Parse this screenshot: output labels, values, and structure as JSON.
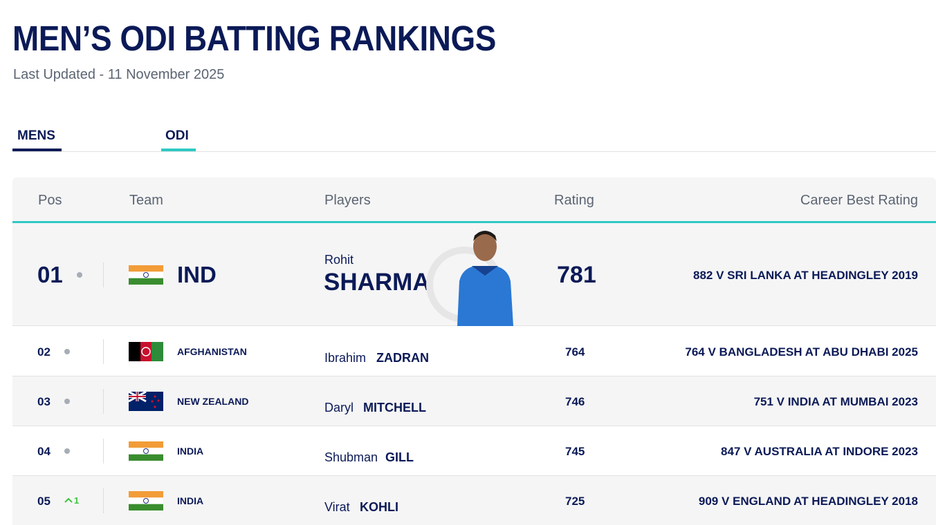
{
  "header": {
    "title": "MEN’S ODI BATTING RANKINGS",
    "subtitle": "Last Updated - 11 November 2025"
  },
  "tabs": [
    "MENS",
    "ODI"
  ],
  "table": {
    "columns": [
      "Pos",
      "Team",
      "Players",
      "Rating",
      "Career Best Rating"
    ],
    "rows": [
      {
        "pos": "01",
        "team": "IND",
        "first_name": "Rohit",
        "last_name": "SHARMA",
        "rating": 781,
        "career_best": "882 V SRI LANKA AT HEADINGLEY 2019"
      },
      {
        "pos": "02",
        "team": "AFGHANISTAN",
        "first_name": "Ibrahim",
        "last_name": "ZADRAN",
        "rating": 764,
        "career_best": "764 V BANGLADESH AT ABU DHABI 2025"
      },
      {
        "pos": "03",
        "team": "NEW ZEALAND",
        "first_name": "Daryl",
        "last_name": "MITCHELL",
        "rating": 746,
        "career_best": "751 V INDIA AT MUMBAI 2023"
      },
      {
        "pos": "04",
        "team": "INDIA",
        "first_name": "Shubman",
        "last_name": "GILL",
        "rating": 745,
        "career_best": "847 V AUSTRALIA AT INDORE 2023"
      },
      {
        "pos": "05",
        "team": "INDIA",
        "movement": "1",
        "first_name": "Virat",
        "last_name": "KOHLI",
        "rating": 725,
        "career_best": "909 V ENGLAND AT HEADINGLEY 2018"
      }
    ]
  }
}
